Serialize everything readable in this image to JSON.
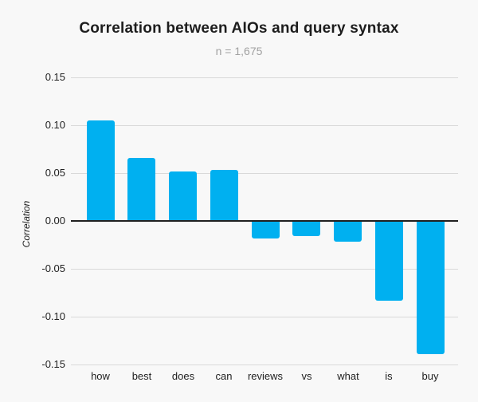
{
  "chart_data": {
    "type": "bar",
    "title": "Correlation between AIOs and query syntax",
    "subtitle": "n = 1,675",
    "xlabel": "",
    "ylabel": "Correlation",
    "categories": [
      "how",
      "best",
      "does",
      "can",
      "reviews",
      "vs",
      "what",
      "is",
      "buy"
    ],
    "values": [
      0.105,
      0.066,
      0.052,
      0.053,
      -0.018,
      -0.016,
      -0.022,
      -0.083,
      -0.139
    ],
    "ylim": [
      -0.15,
      0.15
    ],
    "yticks": [
      0.15,
      0.1,
      0.05,
      0,
      -0.05,
      -0.1,
      -0.15
    ],
    "ytick_labels": [
      "0.15",
      "0.10",
      "0.05",
      "0.00",
      "-0.05",
      "-0.10",
      "-0.15"
    ],
    "grid": true,
    "legend": false,
    "colors": {
      "bar": "#00b0f0",
      "grid": "#d9d9d9",
      "zero_line": "#212121",
      "tick_text": "#212121",
      "title_text": "#1d1d1d",
      "subtitle_text": "#a1a1a1",
      "background": "#f8f8f8"
    }
  }
}
